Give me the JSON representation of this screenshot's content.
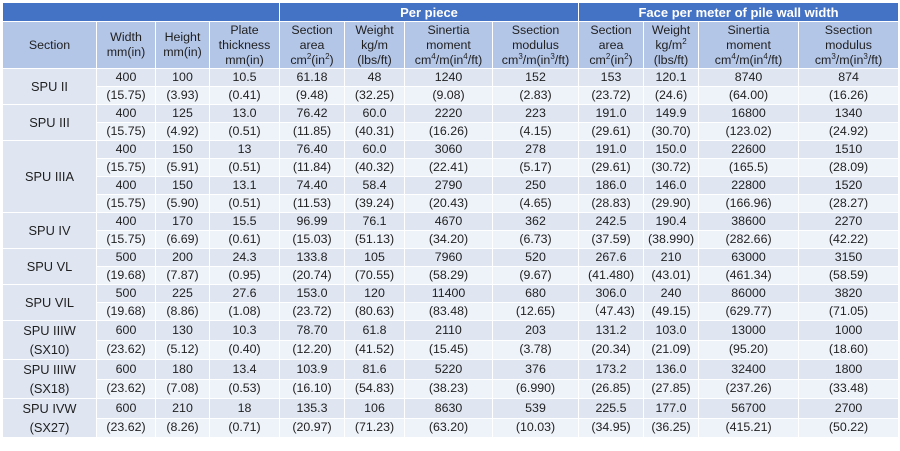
{
  "group_headers": {
    "per_piece": "Per piece",
    "per_meter": "Face per meter of pile wall width"
  },
  "column_headers": [
    "Section",
    "Width mm(in)",
    "Height mm(in)",
    "Plate thickness mm(in)",
    "Section area cm²(in²)",
    "Weight kg/m (lbs/ft)",
    "Sinertia moment cm⁴/m(in⁴/ft)",
    "Ssection modulus cm³/m(in³/ft)",
    "Section area cm²(in²)",
    "Weight kg/m² (lbs/ft)",
    "Sinertia moment cm⁴/m(in⁴/ft)",
    "Ssection modulus cm³/m(in³/ft)"
  ],
  "sections": [
    {
      "name": [
        "SPU II"
      ],
      "rows": [
        {
          "v": [
            "400",
            "100",
            "10.5",
            "61.18",
            "48",
            "1240",
            "152",
            "153",
            "120.1",
            "8740",
            "874"
          ],
          "i": [
            "(15.75)",
            "(3.93)",
            "(0.41)",
            "(9.48)",
            "(32.25)",
            "(9.08)",
            "(2.83)",
            "(23.72)",
            "(24.6)",
            "(64.00)",
            "(16.26)"
          ]
        }
      ]
    },
    {
      "name": [
        "SPU III"
      ],
      "rows": [
        {
          "v": [
            "400",
            "125",
            "13.0",
            "76.42",
            "60.0",
            "2220",
            "223",
            "191.0",
            "149.9",
            "16800",
            "1340"
          ],
          "i": [
            "(15.75)",
            "(4.92)",
            "(0.51)",
            "(11.85)",
            "(40.31)",
            "(16.26)",
            "(4.15)",
            "(29.61)",
            "(30.70)",
            "(123.02)",
            "(24.92)"
          ]
        }
      ]
    },
    {
      "name": [
        "SPU IIIA"
      ],
      "rows": [
        {
          "v": [
            "400",
            "150",
            "13",
            "76.40",
            "60.0",
            "3060",
            "278",
            "191.0",
            "150.0",
            "22600",
            "1510"
          ],
          "i": [
            "(15.75)",
            "(5.91)",
            "(0.51)",
            "(11.84)",
            "(40.32)",
            "(22.41)",
            "(5.17)",
            "(29.61)",
            "(30.72)",
            "(165.5)",
            "(28.09)"
          ]
        },
        {
          "v": [
            "400",
            "150",
            "13.1",
            "74.40",
            "58.4",
            "2790",
            "250",
            "186.0",
            "146.0",
            "22800",
            "1520"
          ],
          "i": [
            "(15.75)",
            "(5.90)",
            "(0.51)",
            "(11.53)",
            "(39.24)",
            "(20.43)",
            "(4.65)",
            "(28.83)",
            "(29.90)",
            "(166.96)",
            "(28.27)"
          ]
        }
      ]
    },
    {
      "name": [
        "SPU IV"
      ],
      "rows": [
        {
          "v": [
            "400",
            "170",
            "15.5",
            "96.99",
            "76.1",
            "4670",
            "362",
            "242.5",
            "190.4",
            "38600",
            "2270"
          ],
          "i": [
            "(15.75)",
            "(6.69)",
            "(0.61)",
            "(15.03)",
            "(51.13)",
            "(34.20)",
            "(6.73)",
            "(37.59)",
            "(38.990)",
            "(282.66)",
            "(42.22)"
          ]
        }
      ]
    },
    {
      "name": [
        "SPU VL"
      ],
      "rows": [
        {
          "v": [
            "500",
            "200",
            "24.3",
            "133.8",
            "105",
            "7960",
            "520",
            "267.6",
            "210",
            "63000",
            "3150"
          ],
          "i": [
            "(19.68)",
            "(7.87)",
            "(0.95)",
            "(20.74)",
            "(70.55)",
            "(58.29)",
            "(9.67)",
            "(41.480)",
            "(43.01)",
            "(461.34)",
            "(58.59)"
          ]
        }
      ]
    },
    {
      "name": [
        "SPU VIL"
      ],
      "rows": [
        {
          "v": [
            "500",
            "225",
            "27.6",
            "153.0",
            "120",
            "11400",
            "680",
            "306.0",
            "240",
            "86000",
            "3820"
          ],
          "i": [
            "(19.68)",
            "(8.86)",
            "(1.08)",
            "(23.72)",
            "(80.63)",
            "(83.48)",
            "(12.65)",
            "（47.43)",
            "(49.15)",
            "(629.77)",
            "(71.05)"
          ]
        }
      ]
    },
    {
      "name": [
        "SPU IIIW",
        "(SX10)"
      ],
      "rows": [
        {
          "v": [
            "600",
            "130",
            "10.3",
            "78.70",
            "61.8",
            "2110",
            "203",
            "131.2",
            "103.0",
            "13000",
            "1000"
          ],
          "i": [
            "(23.62)",
            "(5.12)",
            "(0.40)",
            "(12.20)",
            "(41.52)",
            "(15.45)",
            "(3.78)",
            "(20.34)",
            "(21.09)",
            "(95.20)",
            "(18.60)"
          ]
        }
      ]
    },
    {
      "name": [
        "SPU IIIW",
        "(SX18)"
      ],
      "rows": [
        {
          "v": [
            "600",
            "180",
            "13.4",
            "103.9",
            "81.6",
            "5220",
            "376",
            "173.2",
            "136.0",
            "32400",
            "1800"
          ],
          "i": [
            "(23.62)",
            "(7.08)",
            "(0.53)",
            "(16.10)",
            "(54.83)",
            "(38.23)",
            "(6.990)",
            "(26.85)",
            "(27.85)",
            "(237.26)",
            "(33.48)"
          ]
        }
      ]
    },
    {
      "name": [
        "SPU IVW",
        "(SX27)"
      ],
      "rows": [
        {
          "v": [
            "600",
            "210",
            "18",
            "135.3",
            "106",
            "8630",
            "539",
            "225.5",
            "177.0",
            "56700",
            "2700"
          ],
          "i": [
            "(23.62)",
            "(8.26)",
            "(0.71)",
            "(20.97)",
            "(71.23)",
            "(63.20)",
            "(10.03)",
            "(34.95)",
            "(36.25)",
            "(415.21)",
            "(50.22)"
          ]
        }
      ]
    }
  ]
}
